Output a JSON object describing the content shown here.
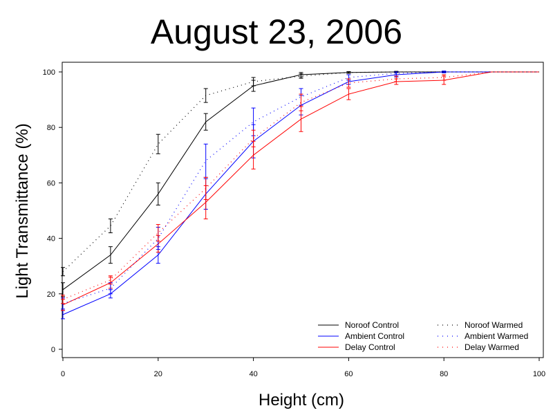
{
  "chart_data": {
    "type": "line",
    "title": "August 23, 2006",
    "xlabel": "Height (cm)",
    "ylabel": "Light Transmittance (%)",
    "xlim": [
      0,
      100
    ],
    "ylim": [
      0,
      100
    ],
    "xticks": [
      "0",
      "20",
      "40",
      "60",
      "80",
      "100"
    ],
    "yticks": [
      "0",
      "20",
      "40",
      "60",
      "80",
      "100"
    ],
    "legend_position": "bottom-right",
    "grid": false,
    "x": [
      0,
      10,
      20,
      30,
      40,
      50,
      60,
      70,
      80,
      90,
      100
    ],
    "series": [
      {
        "name": "Noroof Control",
        "color": "#000000",
        "style": "solid",
        "values": [
          21.5,
          34,
          56,
          82,
          95,
          99,
          99.8,
          100,
          100,
          100,
          100
        ],
        "errors": [
          2.5,
          3,
          4,
          3,
          2,
          0.8,
          0.3,
          0.2,
          0.2,
          0,
          0
        ]
      },
      {
        "name": "Ambient Control",
        "color": "#0000ff",
        "style": "solid",
        "values": [
          12.5,
          20,
          34,
          56,
          75,
          88,
          96.5,
          99,
          100,
          100,
          100
        ],
        "errors": [
          1.5,
          1.5,
          3,
          5.5,
          6,
          3.5,
          1,
          0.8,
          0.3,
          0,
          0
        ]
      },
      {
        "name": "Delay Control",
        "color": "#ff0000",
        "style": "solid",
        "values": [
          16,
          24,
          38,
          53,
          70,
          83,
          92,
          96.5,
          97,
          100,
          100
        ],
        "errors": [
          2,
          2,
          3,
          6,
          5,
          4.5,
          2,
          1,
          1.5,
          0,
          0
        ]
      },
      {
        "name": "Noroof Warmed",
        "color": "#000000",
        "style": "dotted",
        "values": [
          28,
          44.5,
          74,
          91.5,
          96.5,
          98.5,
          99.8,
          100,
          100,
          100,
          100
        ],
        "errors": [
          1.5,
          2.5,
          3.5,
          2.5,
          1.5,
          0.8,
          0.3,
          0.2,
          0.2,
          0,
          0
        ]
      },
      {
        "name": "Ambient Warmed",
        "color": "#0000ff",
        "style": "dotted",
        "values": [
          16.5,
          22,
          40,
          68,
          82,
          91,
          98,
          99.5,
          100,
          100,
          100
        ],
        "errors": [
          2,
          2,
          4,
          6,
          5,
          3,
          1,
          0.5,
          0.3,
          0,
          0
        ]
      },
      {
        "name": "Delay Warmed",
        "color": "#ff0000",
        "style": "dotted",
        "values": [
          18,
          25,
          42,
          58,
          76,
          89,
          96,
          97.5,
          98,
          100,
          100
        ],
        "errors": [
          1.5,
          1.5,
          3,
          4,
          3,
          3,
          1.5,
          1,
          1,
          0,
          0
        ]
      }
    ]
  }
}
